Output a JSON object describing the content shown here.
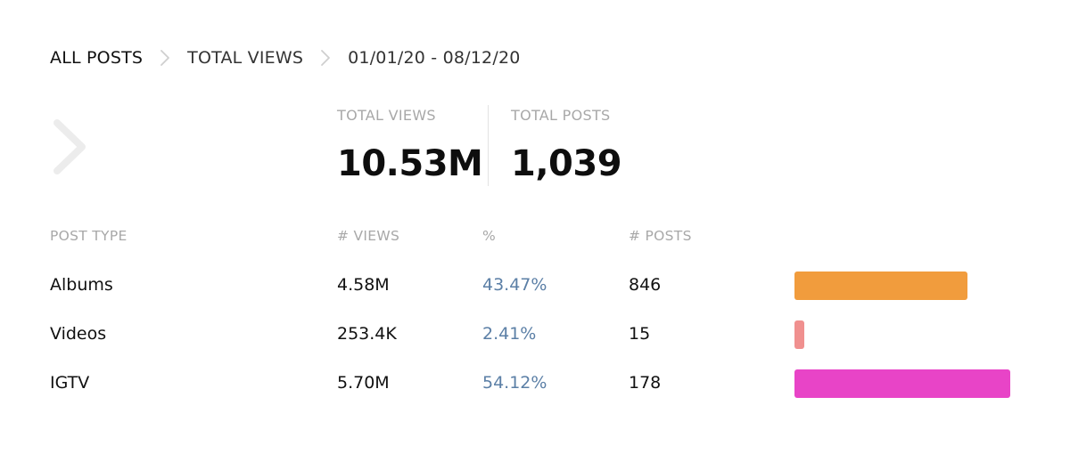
{
  "breadcrumb": {
    "all_posts": "ALL POSTS",
    "total_views": "TOTAL VIEWS",
    "date_range": "01/01/20 - 08/12/20"
  },
  "icons": {
    "breadcrumb_separator": "chevron-right-icon",
    "back": "chevron-right-icon"
  },
  "stats": {
    "views_label": "TOTAL VIEWS",
    "views_value": "10.53M",
    "posts_label": "TOTAL POSTS",
    "posts_value": "1,039"
  },
  "table": {
    "headers": {
      "type": "POST TYPE",
      "views": "# VIEWS",
      "pct": "%",
      "posts": "# POSTS"
    },
    "rows": [
      {
        "type": "Albums",
        "views": "4.58M",
        "pct": "43.47%",
        "posts": "846",
        "share": 0.4347,
        "color": "#f19c3d"
      },
      {
        "type": "Videos",
        "views": "253.4K",
        "pct": "2.41%",
        "posts": "15",
        "share": 0.0241,
        "color": "#f0908f"
      },
      {
        "type": "IGTV",
        "views": "5.70M",
        "pct": "54.12%",
        "posts": "178",
        "share": 0.5412,
        "color": "#e844c7"
      }
    ]
  },
  "colors": {
    "accent_link": "#5b7fa6",
    "muted_label": "#a8a8a8"
  }
}
